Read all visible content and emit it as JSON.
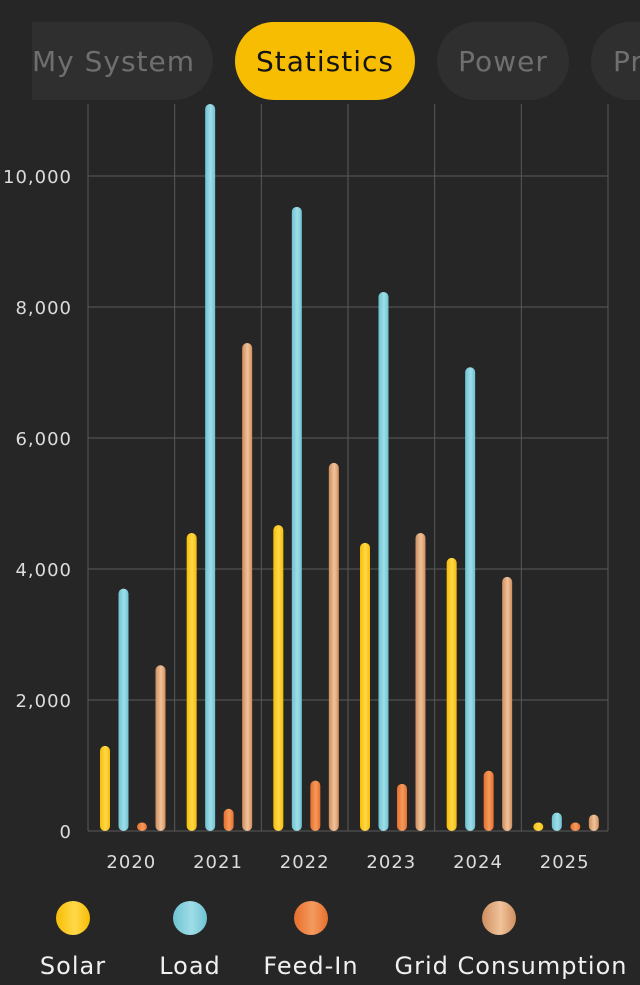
{
  "tabs": [
    {
      "label": "My System",
      "active": false
    },
    {
      "label": "Statistics",
      "active": true
    },
    {
      "label": "Power",
      "active": false
    },
    {
      "label": "Pr",
      "active": false
    }
  ],
  "colors": {
    "background": "#262626",
    "accent": "#f7bd03",
    "grid": "#5a5a5a",
    "axis_text": "#dcdcdc"
  },
  "chart_data": {
    "type": "bar",
    "title": "",
    "xlabel": "",
    "ylabel": "",
    "categories": [
      "2020",
      "2021",
      "2022",
      "2023",
      "2024",
      "2025"
    ],
    "ylim": [
      0,
      11100
    ],
    "yticks": [
      0,
      2000,
      4000,
      6000,
      8000,
      10000
    ],
    "ytick_labels": [
      "0",
      "2,000",
      "4,000",
      "6,000",
      "8,000",
      "10,000"
    ],
    "grid": true,
    "legend_position": "bottom",
    "series": [
      {
        "name": "Solar",
        "color": "#f7bd03",
        "color_light": "#ffd84a",
        "values": [
          1300,
          4550,
          4670,
          4400,
          4170,
          130
        ]
      },
      {
        "name": "Load",
        "color": "#6ec3d2",
        "color_light": "#9fdde8",
        "values": [
          3700,
          11100,
          9530,
          8230,
          7080,
          280
        ]
      },
      {
        "name": "Feed-In",
        "color": "#e66f2c",
        "color_light": "#f49a5e",
        "values": [
          130,
          340,
          770,
          720,
          920,
          130
        ]
      },
      {
        "name": "Grid Consumption",
        "color": "#cf8e5d",
        "color_light": "#f0c39c",
        "values": [
          2530,
          7450,
          5620,
          4550,
          3880,
          250
        ]
      }
    ]
  }
}
